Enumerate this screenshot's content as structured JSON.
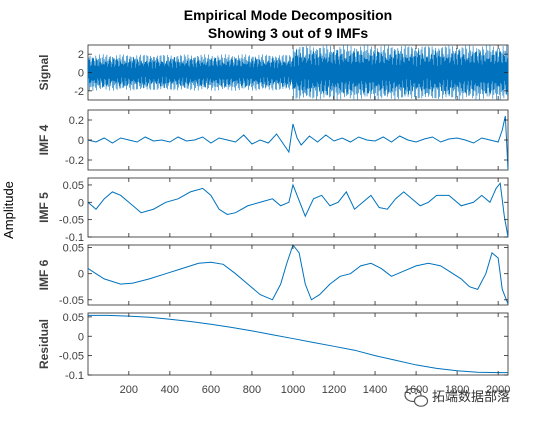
{
  "chart_data": {
    "type": "line",
    "title_line1": "Empirical Mode Decomposition",
    "title_line2": "Showing 3 out of 9 IMFs",
    "ylabel": "Amplitude",
    "xlim": [
      1,
      2048
    ],
    "xticks": [
      "200",
      "400",
      "600",
      "800",
      "1000",
      "1200",
      "1400",
      "1600",
      "1800",
      "2000"
    ],
    "xtick_values": [
      200,
      400,
      600,
      800,
      1000,
      1200,
      1400,
      1600,
      1800,
      2000
    ],
    "line_color": "#0072BD",
    "grid": false,
    "panels": [
      {
        "label": "Signal",
        "ylim": [
          -3,
          3
        ],
        "yticks": [
          "2",
          "0",
          "-2"
        ],
        "ytick_values": [
          2,
          0,
          -2
        ],
        "kind": "oscillating",
        "description_points": {
          "x": [
            1,
            1000,
            1001,
            2048
          ],
          "amplitude": [
            2.0,
            2.0,
            3.0,
            3.0
          ]
        }
      },
      {
        "label": "IMF 4",
        "ylim": [
          -0.3,
          0.3
        ],
        "yticks": [
          "0.2",
          "0",
          "-0.2"
        ],
        "ytick_values": [
          0.2,
          0,
          -0.2
        ],
        "x": [
          1,
          40,
          80,
          120,
          160,
          200,
          240,
          280,
          320,
          360,
          400,
          440,
          480,
          520,
          560,
          600,
          640,
          680,
          720,
          760,
          800,
          840,
          880,
          920,
          960,
          980,
          1000,
          1020,
          1040,
          1080,
          1120,
          1160,
          1200,
          1240,
          1280,
          1320,
          1360,
          1400,
          1440,
          1480,
          1520,
          1560,
          1600,
          1640,
          1680,
          1720,
          1760,
          1800,
          1840,
          1880,
          1920,
          1960,
          2000,
          2020,
          2035,
          2048
        ],
        "values": [
          0.0,
          -0.02,
          0.02,
          -0.03,
          0.02,
          0.0,
          -0.02,
          0.03,
          -0.01,
          0.0,
          -0.02,
          0.03,
          -0.01,
          0.0,
          0.03,
          -0.03,
          0.02,
          0.0,
          -0.02,
          0.05,
          -0.04,
          0.0,
          -0.03,
          0.06,
          -0.06,
          -0.12,
          0.16,
          0.02,
          -0.05,
          0.04,
          -0.02,
          0.05,
          -0.01,
          0.02,
          -0.02,
          0.03,
          0.0,
          -0.01,
          0.03,
          -0.02,
          0.04,
          0.0,
          -0.02,
          0.01,
          0.03,
          -0.02,
          0.01,
          0.02,
          0.0,
          -0.03,
          0.02,
          0.0,
          -0.02,
          0.1,
          0.24,
          -0.3
        ]
      },
      {
        "label": "IMF 5",
        "ylim": [
          -0.1,
          0.07
        ],
        "yticks": [
          "0.05",
          "0",
          "-0.05",
          "-0.1"
        ],
        "ytick_values": [
          0.05,
          0,
          -0.05,
          -0.1
        ],
        "x": [
          1,
          40,
          80,
          120,
          160,
          200,
          260,
          320,
          380,
          440,
          500,
          560,
          600,
          640,
          680,
          720,
          780,
          840,
          900,
          940,
          980,
          1000,
          1020,
          1060,
          1100,
          1140,
          1180,
          1220,
          1260,
          1300,
          1340,
          1380,
          1420,
          1460,
          1500,
          1540,
          1580,
          1620,
          1660,
          1700,
          1760,
          1820,
          1880,
          1920,
          1960,
          1990,
          2010,
          2030,
          2048
        ],
        "values": [
          0.0,
          -0.02,
          0.01,
          0.03,
          0.02,
          0.0,
          -0.03,
          -0.02,
          0.0,
          0.01,
          0.03,
          0.04,
          0.02,
          -0.02,
          -0.035,
          -0.03,
          -0.01,
          0.0,
          0.01,
          -0.01,
          0.0,
          0.05,
          0.02,
          -0.04,
          0.01,
          0.02,
          -0.01,
          0.0,
          0.03,
          -0.02,
          0.0,
          0.02,
          -0.015,
          -0.02,
          0.01,
          0.03,
          0.01,
          -0.01,
          0.0,
          0.02,
          0.02,
          -0.01,
          0.0,
          0.02,
          0.0,
          0.04,
          0.055,
          -0.04,
          -0.1
        ]
      },
      {
        "label": "IMF 6",
        "ylim": [
          -0.06,
          0.055
        ],
        "yticks": [
          "0.05",
          "0",
          "-0.05"
        ],
        "ytick_values": [
          0.05,
          0,
          -0.05
        ],
        "x": [
          1,
          40,
          80,
          120,
          160,
          220,
          300,
          380,
          460,
          540,
          600,
          660,
          720,
          780,
          840,
          900,
          940,
          970,
          1000,
          1030,
          1060,
          1090,
          1130,
          1180,
          1230,
          1280,
          1330,
          1380,
          1430,
          1480,
          1540,
          1600,
          1660,
          1720,
          1780,
          1820,
          1860,
          1900,
          1940,
          1970,
          2000,
          2020,
          2048
        ],
        "values": [
          0.01,
          0.0,
          -0.01,
          -0.015,
          -0.02,
          -0.018,
          -0.01,
          0.0,
          0.01,
          0.02,
          0.022,
          0.018,
          0.0,
          -0.02,
          -0.04,
          -0.05,
          -0.02,
          0.02,
          0.055,
          0.04,
          -0.02,
          -0.05,
          -0.04,
          -0.02,
          -0.005,
          0.0,
          0.015,
          0.02,
          0.01,
          -0.005,
          0.005,
          0.015,
          0.02,
          0.015,
          0.0,
          -0.01,
          -0.025,
          -0.03,
          0.0,
          0.04,
          0.03,
          -0.03,
          -0.058
        ]
      },
      {
        "label": "Residual",
        "ylim": [
          -0.1,
          0.06
        ],
        "yticks": [
          "0.05",
          "0",
          "-0.05",
          "-0.1"
        ],
        "ytick_values": [
          0.05,
          0,
          -0.05,
          -0.1
        ],
        "x": [
          1,
          100,
          200,
          300,
          400,
          500,
          600,
          700,
          800,
          900,
          1000,
          1100,
          1200,
          1300,
          1400,
          1500,
          1600,
          1700,
          1800,
          1900,
          2000,
          2048
        ],
        "values": [
          0.054,
          0.054,
          0.052,
          0.049,
          0.044,
          0.038,
          0.031,
          0.023,
          0.014,
          0.004,
          -0.006,
          -0.016,
          -0.026,
          -0.036,
          -0.05,
          -0.062,
          -0.074,
          -0.083,
          -0.089,
          -0.093,
          -0.094,
          -0.094
        ]
      }
    ]
  },
  "watermark": {
    "text": "拓端数据部落",
    "icon": "wechat-icon"
  }
}
